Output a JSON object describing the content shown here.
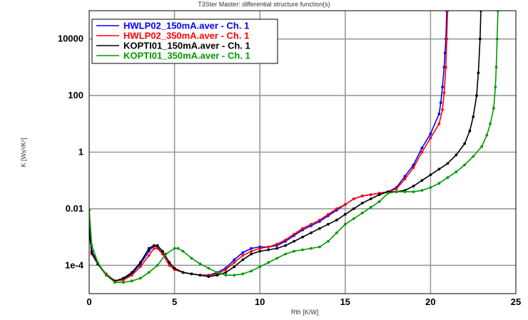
{
  "title": "T3Ster Master: differential structure function(s)",
  "chart_data": {
    "type": "line",
    "title": "T3Ster Master: differential structure function(s)",
    "xlabel": "Rth  [K/W]",
    "ylabel": "K [Ws²/K²]",
    "xlim": [
      0,
      25
    ],
    "ylim_log10": [
      -5,
      5
    ],
    "yscale": "log",
    "grid": true,
    "legend_position": "top-left",
    "x_ticks": [
      {
        "value": 0,
        "label": "0"
      },
      {
        "value": 5,
        "label": "5"
      },
      {
        "value": 10,
        "label": "10"
      },
      {
        "value": 15,
        "label": "15"
      },
      {
        "value": 20,
        "label": "20"
      },
      {
        "value": 25,
        "label": "25"
      }
    ],
    "y_ticks": [
      {
        "value": 0.0001,
        "label": "1e-4"
      },
      {
        "value": 0.01,
        "label": "0.01"
      },
      {
        "value": 1,
        "label": "1"
      },
      {
        "value": 100,
        "label": "100"
      },
      {
        "value": 10000,
        "label": "10000"
      }
    ],
    "series": [
      {
        "name": "HWLP02_150mA.aver - Ch. 1",
        "color": "#0000ff",
        "points": [
          [
            0.0,
            0.00281
          ],
          [
            0.15,
            0.000316
          ],
          [
            0.5,
            0.000118
          ],
          [
            1.0,
            4.5e-05
          ],
          [
            1.5,
            2.8e-05
          ],
          [
            2.0,
            3.2e-05
          ],
          [
            2.5,
            5e-05
          ],
          [
            3.0,
            0.000112
          ],
          [
            3.5,
            0.000316
          ],
          [
            3.8,
            0.000501
          ],
          [
            4.0,
            0.000447
          ],
          [
            4.3,
            0.000251
          ],
          [
            4.7,
            0.0001
          ],
          [
            5.0,
            7.1e-05
          ],
          [
            5.5,
            5.6e-05
          ],
          [
            6.0,
            5e-05
          ],
          [
            6.5,
            4.5e-05
          ],
          [
            7.0,
            4.5e-05
          ],
          [
            7.5,
            5.6e-05
          ],
          [
            8.0,
            8e-05
          ],
          [
            8.5,
            0.000158
          ],
          [
            9.0,
            0.000282
          ],
          [
            9.5,
            0.000398
          ],
          [
            10.0,
            0.000447
          ],
          [
            10.5,
            0.000447
          ],
          [
            11.0,
            0.000501
          ],
          [
            11.5,
            0.000708
          ],
          [
            12.0,
            0.00112
          ],
          [
            12.5,
            0.00178
          ],
          [
            13.0,
            0.00251
          ],
          [
            13.5,
            0.00355
          ],
          [
            14.0,
            0.00562
          ],
          [
            14.5,
            0.00891
          ],
          [
            15.0,
            0.0141
          ],
          [
            15.5,
            0.0224
          ],
          [
            16.0,
            0.0282
          ],
          [
            16.5,
            0.0316
          ],
          [
            17.0,
            0.0355
          ],
          [
            17.5,
            0.0398
          ],
          [
            18.0,
            0.0562
          ],
          [
            18.5,
            0.141
          ],
          [
            19.0,
            0.355
          ],
          [
            19.5,
            1.41
          ],
          [
            20.0,
            4.47
          ],
          [
            20.5,
            22.4
          ],
          [
            20.6,
            56.2
          ],
          [
            20.7,
            200
          ],
          [
            20.8,
            1000
          ],
          [
            20.85,
            3162
          ],
          [
            20.9,
            10000
          ],
          [
            20.95,
            100000
          ]
        ]
      },
      {
        "name": "HWLP02_350mA.aver - Ch. 1",
        "color": "#ff0000",
        "points": [
          [
            0.0,
            0.00158
          ],
          [
            0.15,
            0.000251
          ],
          [
            0.5,
            0.000112
          ],
          [
            1.0,
            5e-05
          ],
          [
            1.5,
            2.8e-05
          ],
          [
            2.0,
            3e-05
          ],
          [
            2.5,
            4.5e-05
          ],
          [
            3.0,
            8.9e-05
          ],
          [
            3.5,
            0.000224
          ],
          [
            3.8,
            0.000398
          ],
          [
            4.0,
            0.000398
          ],
          [
            4.3,
            0.000251
          ],
          [
            4.7,
            0.0001
          ],
          [
            5.0,
            7.1e-05
          ],
          [
            5.5,
            5.6e-05
          ],
          [
            6.0,
            5e-05
          ],
          [
            6.5,
            4.5e-05
          ],
          [
            7.0,
            4.5e-05
          ],
          [
            7.5,
            5e-05
          ],
          [
            8.0,
            7.1e-05
          ],
          [
            8.5,
            0.000126
          ],
          [
            9.0,
            0.000224
          ],
          [
            9.5,
            0.000316
          ],
          [
            10.0,
            0.000398
          ],
          [
            10.5,
            0.000447
          ],
          [
            11.0,
            0.000562
          ],
          [
            11.5,
            0.000794
          ],
          [
            12.0,
            0.00126
          ],
          [
            12.5,
            0.002
          ],
          [
            13.0,
            0.00282
          ],
          [
            13.5,
            0.00398
          ],
          [
            14.0,
            0.00631
          ],
          [
            14.5,
            0.01
          ],
          [
            15.0,
            0.0141
          ],
          [
            15.5,
            0.0224
          ],
          [
            16.0,
            0.0282
          ],
          [
            16.5,
            0.0316
          ],
          [
            17.0,
            0.0355
          ],
          [
            17.5,
            0.0398
          ],
          [
            18.0,
            0.0501
          ],
          [
            18.5,
            0.112
          ],
          [
            19.0,
            0.282
          ],
          [
            19.5,
            1.0
          ],
          [
            20.0,
            3.16
          ],
          [
            20.5,
            10.0
          ],
          [
            20.7,
            31.6
          ],
          [
            20.8,
            126
          ],
          [
            20.9,
            1000
          ],
          [
            20.95,
            10000
          ],
          [
            21.0,
            100000
          ]
        ]
      },
      {
        "name": "KOPTI01_150mA.aver - Ch. 1",
        "color": "#000000",
        "points": [
          [
            0.0,
            0.00178
          ],
          [
            0.15,
            0.000282
          ],
          [
            0.5,
            0.000112
          ],
          [
            1.0,
            4.5e-05
          ],
          [
            1.5,
            2.8e-05
          ],
          [
            2.0,
            3.5e-05
          ],
          [
            2.5,
            5.6e-05
          ],
          [
            3.0,
            0.000126
          ],
          [
            3.5,
            0.000398
          ],
          [
            3.8,
            0.000501
          ],
          [
            4.0,
            0.000501
          ],
          [
            4.3,
            0.000316
          ],
          [
            4.7,
            0.000126
          ],
          [
            5.0,
            7.9e-05
          ],
          [
            5.5,
            5.6e-05
          ],
          [
            6.0,
            5e-05
          ],
          [
            6.5,
            4.5e-05
          ],
          [
            7.0,
            4e-05
          ],
          [
            7.5,
            4.5e-05
          ],
          [
            8.0,
            5.6e-05
          ],
          [
            8.5,
            8.9e-05
          ],
          [
            9.0,
            0.000158
          ],
          [
            9.5,
            0.000251
          ],
          [
            10.0,
            0.000316
          ],
          [
            10.5,
            0.000355
          ],
          [
            11.0,
            0.000398
          ],
          [
            11.5,
            0.000501
          ],
          [
            12.0,
            0.000708
          ],
          [
            12.5,
            0.001
          ],
          [
            13.0,
            0.00141
          ],
          [
            13.5,
            0.002
          ],
          [
            14.0,
            0.00282
          ],
          [
            14.5,
            0.00398
          ],
          [
            15.0,
            0.00631
          ],
          [
            15.5,
            0.01
          ],
          [
            16.0,
            0.0158
          ],
          [
            16.5,
            0.0224
          ],
          [
            17.0,
            0.0316
          ],
          [
            17.5,
            0.0398
          ],
          [
            18.0,
            0.0398
          ],
          [
            18.5,
            0.0447
          ],
          [
            19.0,
            0.0631
          ],
          [
            19.5,
            0.1
          ],
          [
            20.0,
            0.158
          ],
          [
            20.5,
            0.251
          ],
          [
            21.0,
            0.398
          ],
          [
            21.5,
            0.794
          ],
          [
            22.0,
            2.0
          ],
          [
            22.3,
            5.62
          ],
          [
            22.5,
            17.8
          ],
          [
            22.7,
            100
          ],
          [
            22.8,
            631
          ],
          [
            22.9,
            10000
          ],
          [
            22.95,
            100000
          ]
        ]
      },
      {
        "name": "KOPTI01_350mA.aver - Ch. 1",
        "color": "#009900",
        "points": [
          [
            0.0,
            0.00891
          ],
          [
            0.15,
            0.000501
          ],
          [
            0.5,
            0.000126
          ],
          [
            1.0,
            4.5e-05
          ],
          [
            1.5,
            2.5e-05
          ],
          [
            2.0,
            2.5e-05
          ],
          [
            2.5,
            2.8e-05
          ],
          [
            3.0,
            3.5e-05
          ],
          [
            3.5,
            5.6e-05
          ],
          [
            4.0,
            0.0001
          ],
          [
            4.5,
            0.000251
          ],
          [
            5.0,
            0.000398
          ],
          [
            5.2,
            0.000398
          ],
          [
            5.5,
            0.000316
          ],
          [
            6.0,
            0.000178
          ],
          [
            6.5,
            0.000112
          ],
          [
            7.0,
            7.9e-05
          ],
          [
            7.5,
            5.6e-05
          ],
          [
            8.0,
            4.5e-05
          ],
          [
            8.5,
            4.5e-05
          ],
          [
            9.0,
            5e-05
          ],
          [
            9.5,
            6.3e-05
          ],
          [
            10.0,
            8.9e-05
          ],
          [
            10.5,
            0.000126
          ],
          [
            11.0,
            0.000178
          ],
          [
            11.5,
            0.000251
          ],
          [
            12.0,
            0.000316
          ],
          [
            12.5,
            0.000355
          ],
          [
            13.0,
            0.000398
          ],
          [
            13.5,
            0.000447
          ],
          [
            14.0,
            0.000708
          ],
          [
            14.5,
            0.00141
          ],
          [
            15.0,
            0.00282
          ],
          [
            15.5,
            0.00447
          ],
          [
            16.0,
            0.00708
          ],
          [
            16.5,
            0.0112
          ],
          [
            17.0,
            0.0178
          ],
          [
            17.5,
            0.0355
          ],
          [
            18.0,
            0.0398
          ],
          [
            18.5,
            0.0398
          ],
          [
            19.0,
            0.0398
          ],
          [
            19.5,
            0.0447
          ],
          [
            20.0,
            0.0562
          ],
          [
            20.5,
            0.0794
          ],
          [
            21.0,
            0.126
          ],
          [
            21.5,
            0.2
          ],
          [
            22.0,
            0.355
          ],
          [
            22.5,
            0.708
          ],
          [
            23.0,
            1.58
          ],
          [
            23.3,
            3.98
          ],
          [
            23.5,
            10.0
          ],
          [
            23.7,
            35.5
          ],
          [
            23.8,
            200
          ],
          [
            23.85,
            1000
          ],
          [
            23.9,
            10000
          ],
          [
            23.95,
            100000
          ]
        ]
      }
    ]
  }
}
